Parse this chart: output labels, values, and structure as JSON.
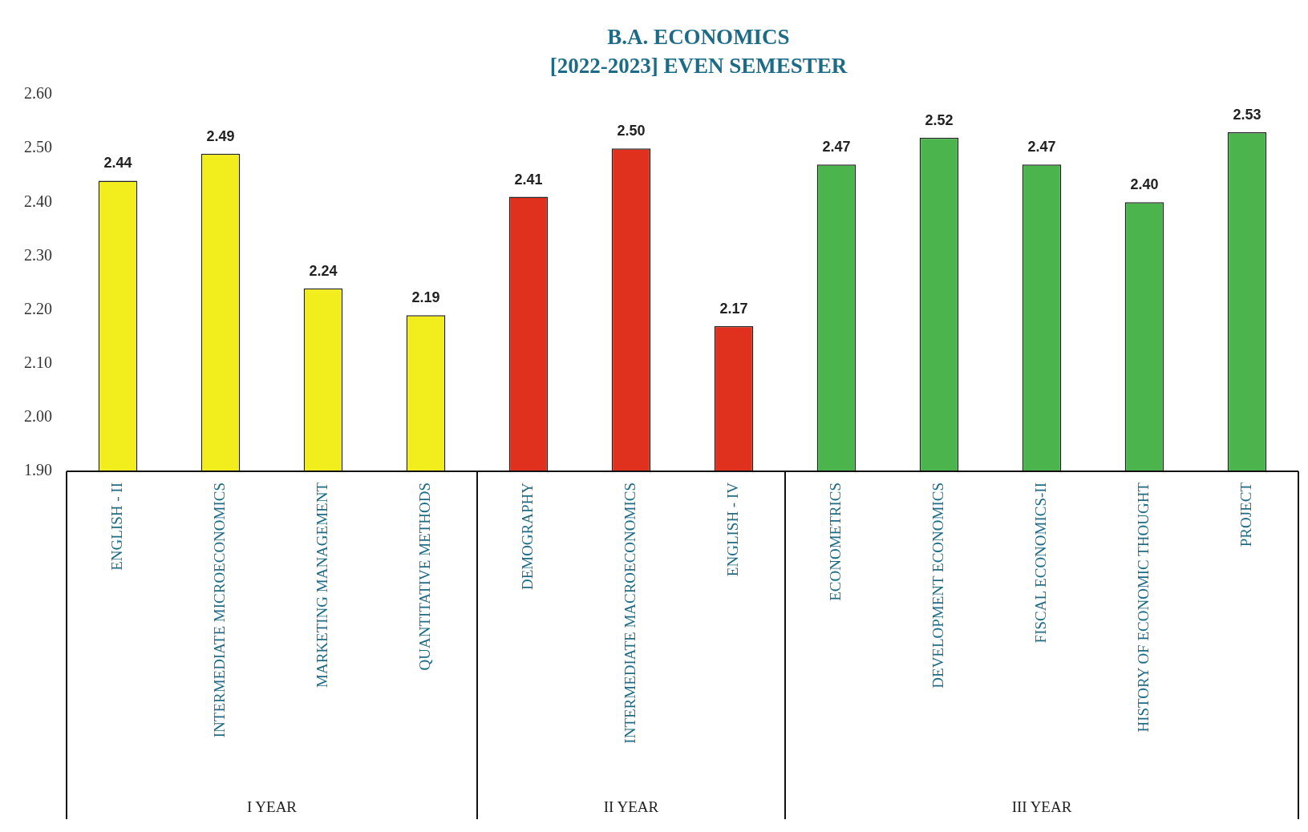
{
  "chart_data": {
    "type": "bar",
    "title": "B.A. ECONOMICS\n[2022-2023] EVEN SEMESTER",
    "categories": [
      "ENGLISH - II",
      "INTERMEDIATE MICROECONOMICS",
      "MARKETING MANAGEMENT",
      "QUANTITATIVE METHODS",
      "DEMOGRAPHY",
      "INTERMEDIATE MACROECONOMICS",
      "ENGLISH - IV",
      "ECONOMETRICS",
      "DEVELOPMENT ECONOMICS",
      "FISCAL ECONOMICS-II",
      "HISTORY OF ECONOMIC THOUGHT",
      "PROJECT"
    ],
    "values": [
      2.44,
      2.49,
      2.24,
      2.19,
      2.41,
      2.5,
      2.17,
      2.47,
      2.52,
      2.47,
      2.4,
      2.53
    ],
    "colors": [
      "#f2ee1e",
      "#f2ee1e",
      "#f2ee1e",
      "#f2ee1e",
      "#e0301e",
      "#e0301e",
      "#e0301e",
      "#4cb44c",
      "#4cb44c",
      "#4cb44c",
      "#4cb44c",
      "#4cb44c"
    ],
    "ylim": [
      1.9,
      2.6
    ],
    "yticks": [
      {
        "value": 1.9,
        "label": "1.90"
      },
      {
        "value": 2.0,
        "label": "2.00"
      },
      {
        "value": 2.1,
        "label": "2.10"
      },
      {
        "value": 2.2,
        "label": "2.20"
      },
      {
        "value": 2.3,
        "label": "2.30"
      },
      {
        "value": 2.4,
        "label": "2.40"
      },
      {
        "value": 2.5,
        "label": "2.50"
      },
      {
        "value": 2.6,
        "label": "2.60"
      }
    ],
    "value_labels": [
      "2.44",
      "2.49",
      "2.24",
      "2.19",
      "2.41",
      "2.50",
      "2.17",
      "2.47",
      "2.52",
      "2.47",
      "2.40",
      "2.53"
    ],
    "annotations": [
      "I YEAR",
      "II YEAR",
      "III YEAR"
    ],
    "grid": false,
    "legend": false
  }
}
